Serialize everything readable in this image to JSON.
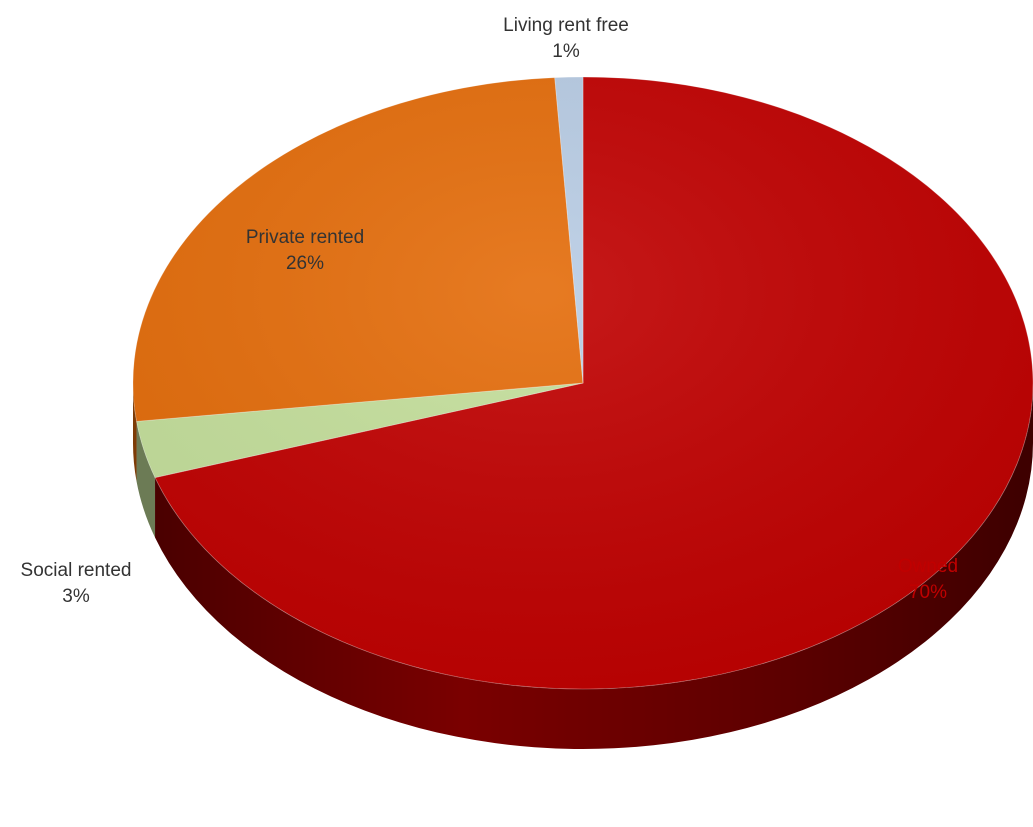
{
  "chart_data": {
    "type": "pie",
    "style": "3d",
    "title": "",
    "slices": [
      {
        "name": "Owned",
        "value": 70,
        "label": "70%",
        "color": "#c00000",
        "label_color": "#c00000"
      },
      {
        "name": "Social rented",
        "value": 3,
        "label": "3%",
        "color": "#c4df9b",
        "label_color": "#333333"
      },
      {
        "name": "Private rented",
        "value": 26,
        "label": "26%",
        "color": "#e46c0a",
        "label_color": "#333333"
      },
      {
        "name": "Living rent free",
        "value": 1,
        "label": "1%",
        "color": "#b8cce4",
        "label_color": "#333333"
      }
    ],
    "legend": "none"
  }
}
